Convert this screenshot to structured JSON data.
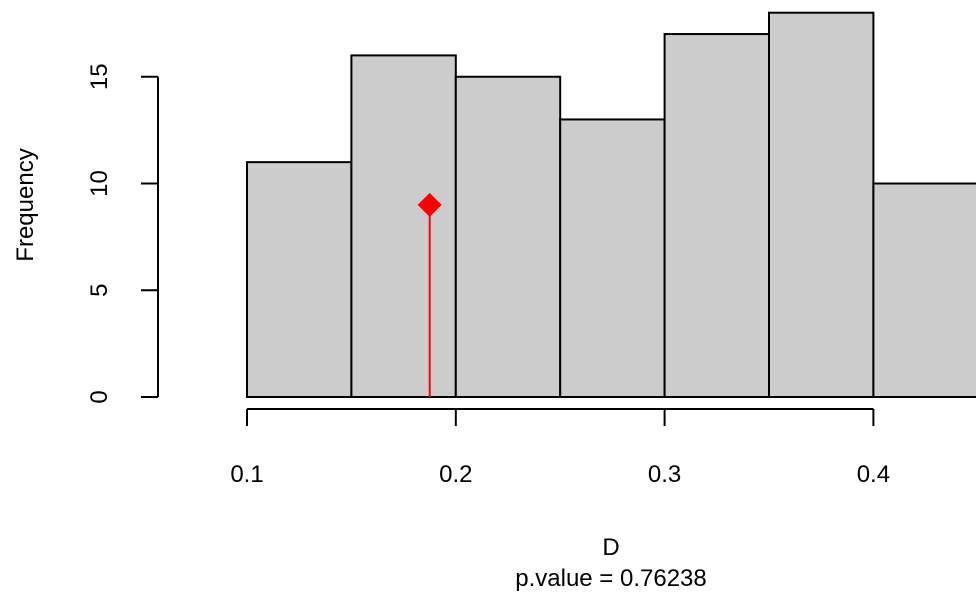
{
  "chart_data": {
    "type": "bar",
    "bins": [
      {
        "x0": 0.1,
        "x1": 0.15,
        "count": 11
      },
      {
        "x0": 0.15,
        "x1": 0.2,
        "count": 16
      },
      {
        "x0": 0.2,
        "x1": 0.25,
        "count": 15
      },
      {
        "x0": 0.25,
        "x1": 0.3,
        "count": 13
      },
      {
        "x0": 0.3,
        "x1": 0.35,
        "count": 17
      },
      {
        "x0": 0.35,
        "x1": 0.4,
        "count": 18
      },
      {
        "x0": 0.4,
        "x1": 0.45,
        "count": 10
      }
    ],
    "xlabel": "D",
    "subtitle": "p.value =  0.76238",
    "ylabel": "Frequency",
    "x_ticks": [
      "0.1",
      "0.2",
      "0.3",
      "0.4"
    ],
    "x_tick_values": [
      0.1,
      0.2,
      0.3,
      0.4
    ],
    "y_ticks": [
      "0",
      "5",
      "10",
      "15"
    ],
    "y_tick_values": [
      0,
      5,
      10,
      15
    ],
    "xlim": [
      0.1,
      0.45
    ],
    "ylim": [
      0,
      18
    ],
    "marker": {
      "x": 0.1875,
      "y": 9,
      "shape": "diamond",
      "color": "#ff0000",
      "line_from_y": 0
    },
    "bar_fill": "#cccccc",
    "bar_stroke": "#000000",
    "grid": false
  }
}
